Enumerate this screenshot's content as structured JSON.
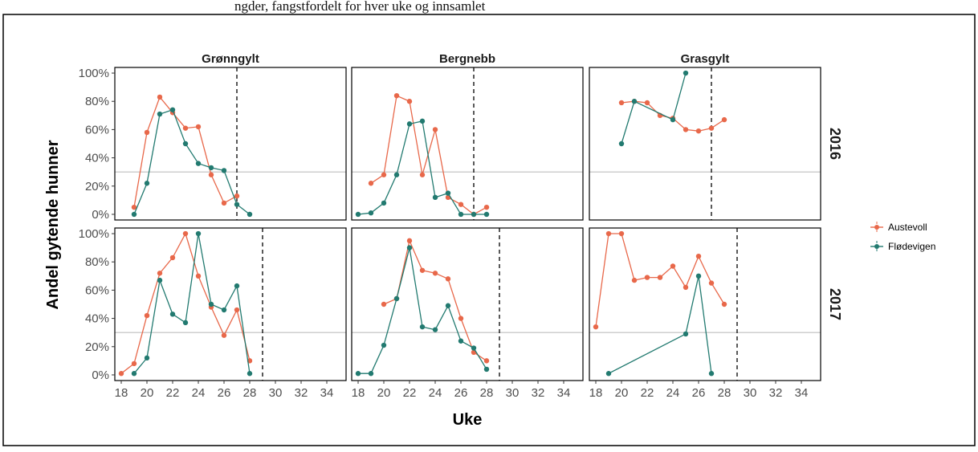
{
  "caption_fragment": "ngder, fangstfordelt for hver uke og innsamlet",
  "chart_data": {
    "type": "line",
    "xlabel": "Uke",
    "ylabel": "Andel gytende hunner",
    "x_ticks": [
      18,
      20,
      22,
      24,
      26,
      28,
      30,
      32,
      34
    ],
    "y_ticks": [
      "0%",
      "20%",
      "40%",
      "60%",
      "80%",
      "100%"
    ],
    "xlim": [
      17.5,
      35.5
    ],
    "ylim": [
      -0.04,
      1.04
    ],
    "reference_line_y": 0.3,
    "species": [
      "Grønngylt",
      "Bergnebb",
      "Grasgylt"
    ],
    "years": [
      "2016",
      "2017"
    ],
    "legend": {
      "position": "right",
      "entries": [
        {
          "name": "Austevoll",
          "color": "#E8684A"
        },
        {
          "name": "Flødevigen",
          "color": "#227A70"
        }
      ]
    },
    "panels": [
      {
        "species": "Grønngylt",
        "year": "2016",
        "week_line": 27,
        "series": [
          {
            "name": "Austevoll",
            "x": [
              19,
              20,
              21,
              22,
              23,
              24,
              25,
              26,
              27
            ],
            "y": [
              0.05,
              0.58,
              0.83,
              0.72,
              0.61,
              0.62,
              0.28,
              0.08,
              0.13
            ]
          },
          {
            "name": "Flødevigen",
            "x": [
              19,
              20,
              21,
              22,
              23,
              24,
              25,
              26,
              27,
              28
            ],
            "y": [
              0.0,
              0.22,
              0.71,
              0.74,
              0.5,
              0.36,
              0.33,
              0.31,
              0.07,
              0.0
            ]
          }
        ]
      },
      {
        "species": "Bergnebb",
        "year": "2016",
        "week_line": 27,
        "series": [
          {
            "name": "Austevoll",
            "x": [
              19,
              20,
              21,
              22,
              23,
              24,
              25,
              26,
              27,
              28
            ],
            "y": [
              0.22,
              0.28,
              0.84,
              0.8,
              0.28,
              0.6,
              0.12,
              0.07,
              0.0,
              0.05
            ]
          },
          {
            "name": "Flødevigen",
            "x": [
              18,
              19,
              20,
              21,
              22,
              23,
              24,
              25,
              26,
              27,
              28
            ],
            "y": [
              0.0,
              0.01,
              0.08,
              0.28,
              0.64,
              0.66,
              0.12,
              0.15,
              0.0,
              0.0,
              0.0
            ]
          }
        ]
      },
      {
        "species": "Grasgylt",
        "year": "2016",
        "week_line": 27,
        "series": [
          {
            "name": "Austevoll",
            "x": [
              20,
              21,
              22,
              23,
              24,
              25,
              26,
              27,
              28
            ],
            "y": [
              0.79,
              0.8,
              0.79,
              0.7,
              0.68,
              0.6,
              0.59,
              0.61,
              0.67
            ]
          },
          {
            "name": "Flødevigen",
            "x": [
              20,
              21,
              24,
              25
            ],
            "y": [
              0.5,
              0.8,
              0.67,
              1.0
            ]
          }
        ]
      },
      {
        "species": "Grønngylt",
        "year": "2017",
        "week_line": 29,
        "series": [
          {
            "name": "Austevoll",
            "x": [
              18,
              19,
              20,
              21,
              22,
              23,
              24,
              25,
              26,
              27,
              28
            ],
            "y": [
              0.01,
              0.08,
              0.42,
              0.72,
              0.83,
              1.0,
              0.7,
              0.48,
              0.28,
              0.46,
              0.1
            ]
          },
          {
            "name": "Flødevigen",
            "x": [
              19,
              20,
              21,
              22,
              23,
              24,
              25,
              26,
              27,
              28
            ],
            "y": [
              0.01,
              0.12,
              0.67,
              0.43,
              0.37,
              1.0,
              0.5,
              0.46,
              0.63,
              0.01
            ]
          }
        ]
      },
      {
        "species": "Bergnebb",
        "year": "2017",
        "week_line": 29,
        "series": [
          {
            "name": "Austevoll",
            "x": [
              20,
              21,
              22,
              23,
              24,
              25,
              26,
              27,
              28
            ],
            "y": [
              0.5,
              0.54,
              0.95,
              0.74,
              0.72,
              0.68,
              0.4,
              0.16,
              0.1
            ]
          },
          {
            "name": "Flødevigen",
            "x": [
              18,
              19,
              20,
              21,
              22,
              23,
              24,
              25,
              26,
              27,
              28
            ],
            "y": [
              0.01,
              0.01,
              0.21,
              0.54,
              0.9,
              0.34,
              0.32,
              0.49,
              0.24,
              0.19,
              0.04
            ]
          }
        ]
      },
      {
        "species": "Grasgylt",
        "year": "2017",
        "week_line": 29,
        "series": [
          {
            "name": "Austevoll",
            "x": [
              18,
              19,
              20,
              21,
              22,
              23,
              24,
              25,
              26,
              27,
              28
            ],
            "y": [
              0.34,
              1.0,
              1.0,
              0.67,
              0.69,
              0.69,
              0.77,
              0.62,
              0.84,
              0.65,
              0.5
            ]
          },
          {
            "name": "Flødevigen",
            "x": [
              19,
              25,
              26,
              27
            ],
            "y": [
              0.01,
              0.29,
              0.7,
              0.01
            ]
          }
        ]
      }
    ]
  }
}
